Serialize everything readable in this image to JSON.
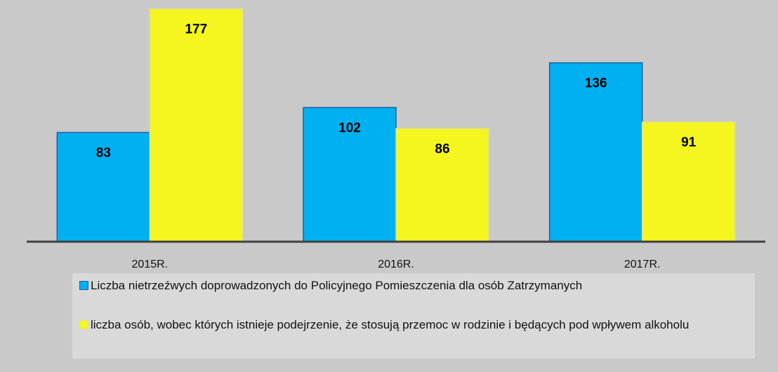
{
  "chart_data": {
    "type": "bar",
    "categories": [
      "2015R.",
      "2016R.",
      "2017R."
    ],
    "series": [
      {
        "name": "Liczba nietrzeźwych doprowadzonych do Policyjnego Pomieszczenia dla osób Zatrzymanych",
        "color": "#00b0f0",
        "values": [
          83,
          102,
          136
        ]
      },
      {
        "name": "liczba osób, wobec których istnieje podejrzenie, że stosują przemoc w rodzinie i będących pod wpływem alkoholu",
        "color": "#f5f520",
        "values": [
          177,
          86,
          91
        ]
      }
    ],
    "ylim": [
      0,
      180
    ],
    "grid": false,
    "legend": "bottom"
  }
}
